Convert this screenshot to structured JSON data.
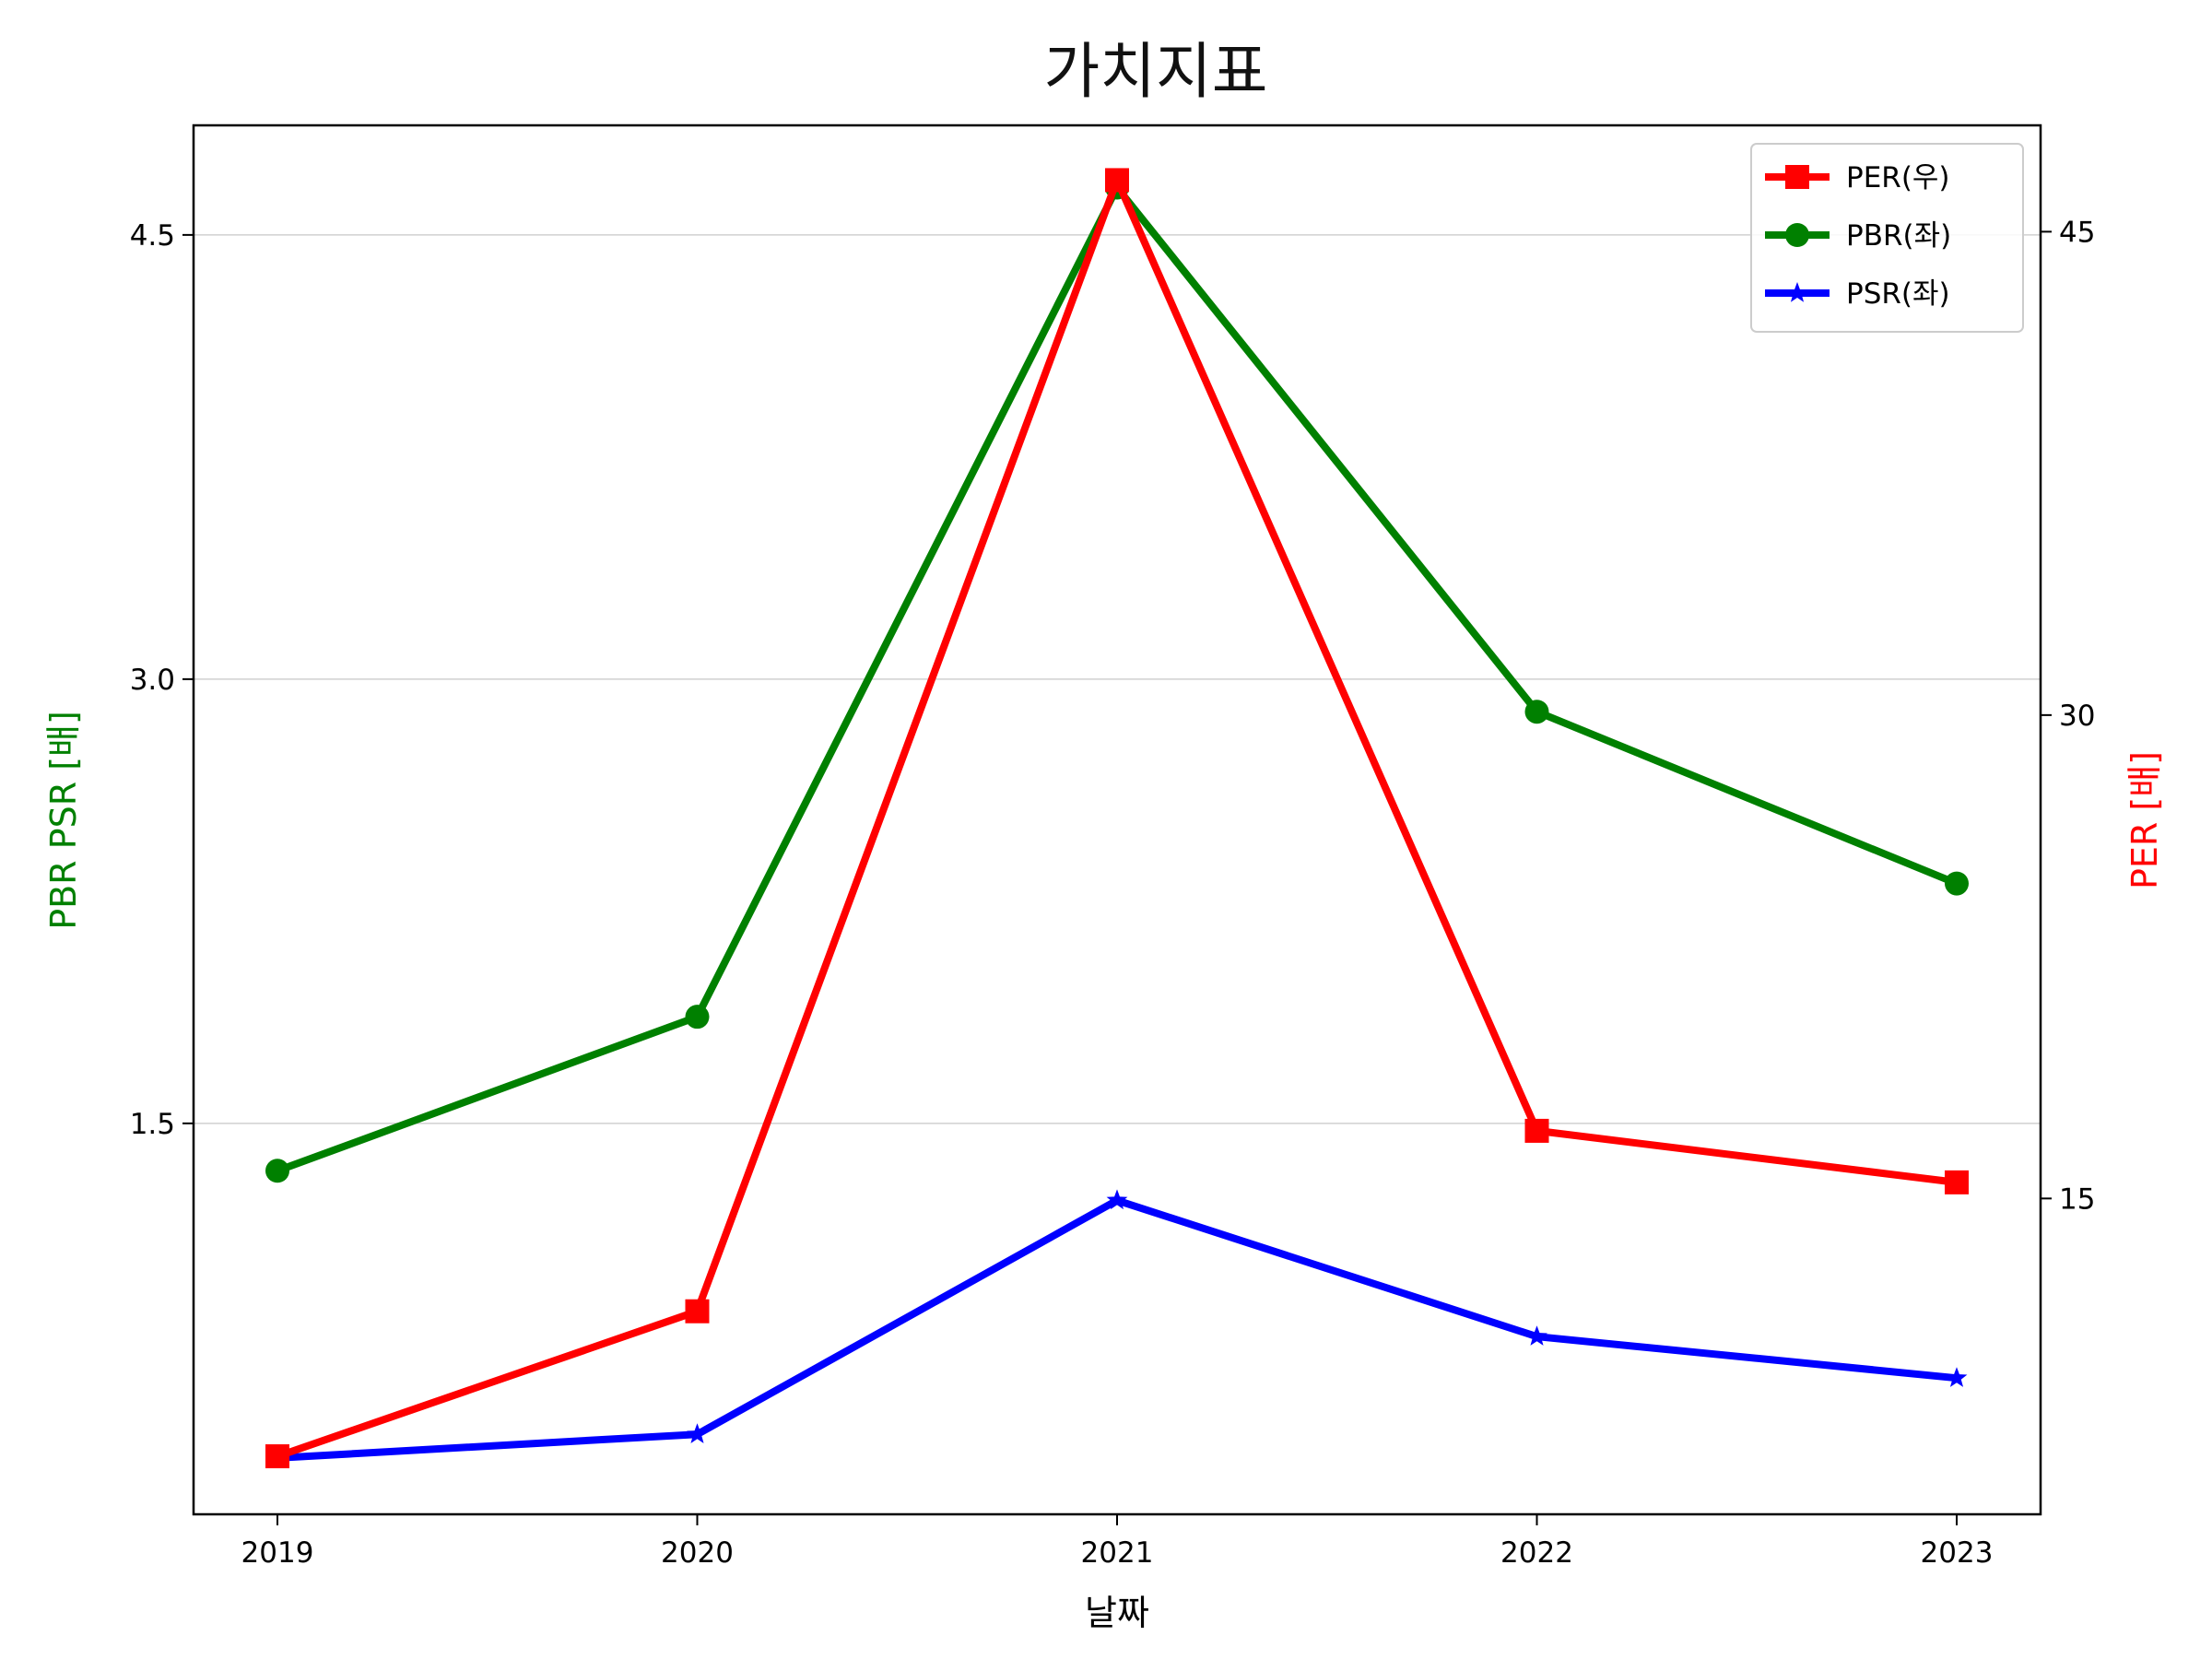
{
  "chart_data": {
    "type": "line",
    "title": "가치지표",
    "xlabel": "날짜",
    "ylabel_left": "PBR PSR [배]",
    "ylabel_right": "PER [배]",
    "categories": [
      "2019",
      "2020",
      "2021",
      "2022",
      "2023"
    ],
    "y_left_ticks": [
      "1.5",
      "3.0",
      "4.5"
    ],
    "y_right_ticks": [
      "15",
      "30",
      "45"
    ],
    "y_left_range": [
      0.18,
      4.87
    ],
    "y_right_range": [
      5.2,
      48.3
    ],
    "grid": "horizontal-left-axis",
    "legend_position": "top-right",
    "series": [
      {
        "name": "PER(우)",
        "axis": "right",
        "color": "#ff0000",
        "marker": "square",
        "values": [
          7.0,
          11.5,
          46.6,
          17.1,
          15.5
        ]
      },
      {
        "name": "PBR(좌)",
        "axis": "left",
        "color": "#008000",
        "marker": "circle",
        "values": [
          1.34,
          1.86,
          4.66,
          2.89,
          2.31
        ]
      },
      {
        "name": "PSR(좌)",
        "axis": "left",
        "color": "#0000ff",
        "marker": "star",
        "values": [
          0.37,
          0.45,
          1.24,
          0.78,
          0.64
        ]
      }
    ],
    "colors": {
      "ylabel_left": "#008000",
      "ylabel_right": "#ff0000"
    }
  }
}
